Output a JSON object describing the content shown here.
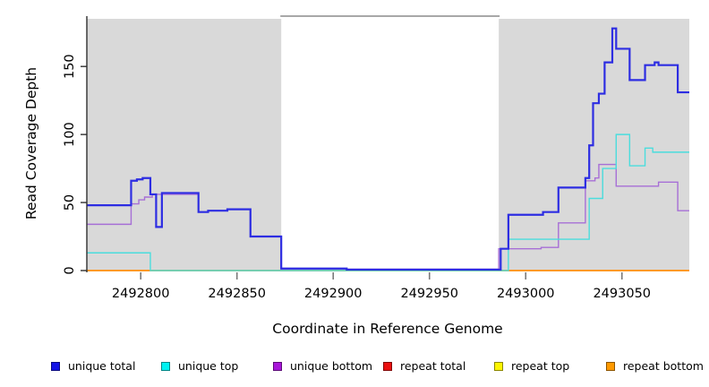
{
  "chart_data": {
    "type": "line",
    "step": true,
    "title": "",
    "xlabel": "Coordinate in Reference Genome",
    "ylabel": "Read Coverage Depth",
    "xlim": [
      2492772,
      2493085
    ],
    "ylim": [
      0,
      187
    ],
    "x_ticks": [
      2492800,
      2492850,
      2492900,
      2492950,
      2493000,
      2493050
    ],
    "y_ticks": [
      0,
      50,
      100,
      150
    ],
    "grid": false,
    "legend_position": "bottom",
    "plot_background": "#ffffff",
    "shaded_regions": [
      {
        "x_start": 2492772,
        "x_end": 2492873,
        "color": "#d9d9d9"
      },
      {
        "x_start": 2492986,
        "x_end": 2493085,
        "color": "#d9d9d9"
      }
    ],
    "series": [
      {
        "name": "repeat total",
        "color": "#e03030",
        "width": 1.4,
        "points": [
          [
            2492772,
            0
          ],
          [
            2493085,
            0
          ]
        ]
      },
      {
        "name": "repeat top",
        "color": "#f5e800",
        "width": 1.4,
        "points": [
          [
            2492772,
            0
          ],
          [
            2493085,
            0
          ]
        ]
      },
      {
        "name": "repeat bottom",
        "color": "#ff941f",
        "width": 1.8,
        "points": [
          [
            2492772,
            0
          ],
          [
            2493085,
            0
          ]
        ]
      },
      {
        "name": "unique bottom",
        "color": "#a76fd6",
        "width": 1.4,
        "points": [
          [
            2492772,
            34
          ],
          [
            2492795,
            49
          ],
          [
            2492799,
            52
          ],
          [
            2492802,
            54
          ],
          [
            2492806,
            56
          ],
          [
            2492830,
            43
          ],
          [
            2492835,
            44
          ],
          [
            2492845,
            45
          ],
          [
            2492857,
            25
          ],
          [
            2492873,
            1
          ],
          [
            2492986,
            16
          ],
          [
            2493008,
            17
          ],
          [
            2493017,
            35
          ],
          [
            2493031,
            66
          ],
          [
            2493036,
            68
          ],
          [
            2493038,
            78
          ],
          [
            2493047,
            62
          ],
          [
            2493069,
            65
          ],
          [
            2493079,
            44
          ],
          [
            2493085,
            44
          ]
        ]
      },
      {
        "name": "unique top",
        "color": "#4adddd",
        "width": 1.4,
        "points": [
          [
            2492772,
            13
          ],
          [
            2492805,
            0
          ],
          [
            2492991,
            23
          ],
          [
            2493033,
            53
          ],
          [
            2493040,
            75
          ],
          [
            2493047,
            100
          ],
          [
            2493054,
            77
          ],
          [
            2493062,
            90
          ],
          [
            2493066,
            87
          ],
          [
            2493085,
            87
          ]
        ]
      },
      {
        "name": "unique total",
        "color": "#2d2de2",
        "width": 2.2,
        "points": [
          [
            2492772,
            48
          ],
          [
            2492795,
            66
          ],
          [
            2492798,
            67
          ],
          [
            2492801,
            68
          ],
          [
            2492805,
            56
          ],
          [
            2492808,
            32
          ],
          [
            2492811,
            57
          ],
          [
            2492830,
            43
          ],
          [
            2492835,
            44
          ],
          [
            2492845,
            45
          ],
          [
            2492857,
            25
          ],
          [
            2492873,
            1.5
          ],
          [
            2492907,
            0.7
          ],
          [
            2492987,
            16
          ],
          [
            2492991,
            41
          ],
          [
            2493009,
            43
          ],
          [
            2493017,
            61
          ],
          [
            2493031,
            68
          ],
          [
            2493033,
            92
          ],
          [
            2493035,
            123
          ],
          [
            2493038,
            130
          ],
          [
            2493041,
            153
          ],
          [
            2493045,
            178
          ],
          [
            2493047,
            163
          ],
          [
            2493054,
            140
          ],
          [
            2493062,
            151
          ],
          [
            2493067,
            153
          ],
          [
            2493069,
            151
          ],
          [
            2493079,
            131
          ],
          [
            2493085,
            131
          ]
        ]
      }
    ],
    "legend": [
      {
        "label": "unique total",
        "color": "#1414e6"
      },
      {
        "label": "unique top",
        "color": "#00f2f2"
      },
      {
        "label": "unique bottom",
        "color": "#a817d9"
      },
      {
        "label": "repeat total",
        "color": "#ea1010"
      },
      {
        "label": "repeat top",
        "color": "#fdf500"
      },
      {
        "label": "repeat bottom",
        "color": "#ff9a00"
      }
    ]
  }
}
